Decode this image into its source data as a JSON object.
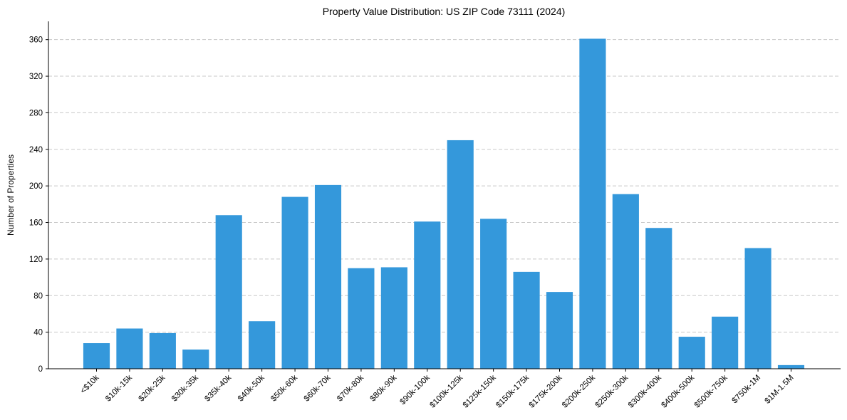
{
  "chart_data": {
    "type": "bar",
    "title": "Property Value Distribution: US ZIP Code 73111 (2024)",
    "xlabel": "",
    "ylabel": "Number of Properties",
    "ylim": [
      0,
      380
    ],
    "yticks": [
      0,
      40,
      80,
      120,
      160,
      200,
      240,
      280,
      320,
      360
    ],
    "grid": true,
    "color": "#3498db",
    "categories": [
      "<$10k",
      "$10k-15k",
      "$20k-25k",
      "$30k-35k",
      "$35k-40k",
      "$40k-50k",
      "$50k-60k",
      "$60k-70k",
      "$70k-80k",
      "$80k-90k",
      "$90k-100k",
      "$100k-125k",
      "$125k-150k",
      "$150k-175k",
      "$175k-200k",
      "$200k-250k",
      "$250k-300k",
      "$300k-400k",
      "$400k-500k",
      "$500k-750k",
      "$750k-1M",
      "$1M-1.5M"
    ],
    "values": [
      28,
      44,
      39,
      21,
      168,
      52,
      188,
      201,
      110,
      111,
      161,
      250,
      164,
      106,
      84,
      361,
      191,
      154,
      35,
      57,
      132,
      4
    ]
  }
}
